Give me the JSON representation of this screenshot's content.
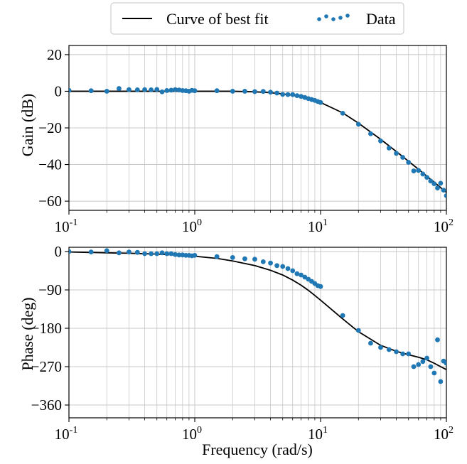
{
  "legend": {
    "curve_label": "Curve of best fit",
    "data_label": "Data"
  },
  "colors": {
    "data": "#1f77b4",
    "curve": "#000000",
    "grid": "#c8c8c8"
  },
  "xlabel": "Frequency (rad/s)",
  "chart_data": [
    {
      "type": "line",
      "ylabel": "Gain (dB)",
      "xscale": "log",
      "xlim": [
        0.1,
        100
      ],
      "ylim": [
        -65,
        25
      ],
      "grid": true,
      "legend_position": "top-center",
      "yticks": [
        20,
        0,
        -20,
        -40,
        -60
      ],
      "series": [
        {
          "name": "Curve of best fit",
          "kind": "line",
          "x": [
            0.1,
            0.2,
            0.5,
            1,
            2,
            3,
            4,
            5,
            6,
            7,
            8,
            9,
            10,
            15,
            20,
            30,
            40,
            50,
            60,
            70,
            80,
            90,
            100
          ],
          "y": [
            0,
            0,
            0,
            0,
            0,
            -0.3,
            -0.8,
            -1.4,
            -2.2,
            -3.1,
            -4.1,
            -5.1,
            -6.1,
            -11.8,
            -17.4,
            -26.2,
            -32.9,
            -38.2,
            -42.6,
            -46.4,
            -49.6,
            -52.6,
            -55.2
          ]
        },
        {
          "name": "Data",
          "kind": "scatter",
          "x": [
            0.1,
            0.15,
            0.2,
            0.25,
            0.3,
            0.35,
            0.4,
            0.45,
            0.5,
            0.55,
            0.6,
            0.65,
            0.7,
            0.75,
            0.8,
            0.85,
            0.9,
            0.95,
            1.0,
            1.5,
            2.0,
            2.5,
            3.0,
            3.5,
            4.0,
            4.5,
            5.0,
            5.5,
            6.0,
            6.5,
            7.0,
            7.5,
            8.0,
            8.5,
            9.0,
            9.5,
            10,
            15,
            20,
            25,
            30,
            35,
            40,
            45,
            50,
            55,
            60,
            65,
            70,
            75,
            80,
            85,
            90,
            95,
            100
          ],
          "y": [
            0.5,
            0.3,
            0,
            1.5,
            0.9,
            0.8,
            0.9,
            0.8,
            1.0,
            -0.3,
            0.4,
            0.6,
            0.9,
            0.7,
            0.4,
            0.3,
            0.0,
            0.5,
            0.3,
            0.3,
            0.0,
            0.0,
            -0.2,
            -0.1,
            -0.5,
            -1.0,
            -1.7,
            -1.8,
            -1.8,
            -2.4,
            -2.8,
            -3.4,
            -4.0,
            -4.5,
            -5.0,
            -5.6,
            -6.1,
            -12.0,
            -18.0,
            -23.2,
            -27.1,
            -31.0,
            -33.9,
            -36.1,
            -38.8,
            -43.5,
            -43.2,
            -45.2,
            -47.0,
            -49.0,
            -50.5,
            -52.8,
            -50.2,
            -54.0,
            -57.0
          ]
        }
      ]
    },
    {
      "type": "line",
      "ylabel": "Phase (deg)",
      "xscale": "log",
      "xlim": [
        0.1,
        100
      ],
      "ylim": [
        -390,
        10
      ],
      "grid": true,
      "yticks": [
        0,
        -90,
        -180,
        -270,
        -360
      ],
      "series": [
        {
          "name": "Curve of best fit",
          "kind": "line",
          "x": [
            0.1,
            0.2,
            0.3,
            0.5,
            0.7,
            1,
            1.5,
            2,
            3,
            4,
            5,
            6,
            7,
            8,
            9,
            10,
            15,
            20,
            30,
            40,
            50,
            60,
            70,
            80,
            90,
            100
          ],
          "y": [
            -1,
            -3,
            -4,
            -6,
            -8,
            -11,
            -16,
            -22,
            -33,
            -44,
            -55,
            -67,
            -79,
            -91,
            -103,
            -114,
            -158,
            -188,
            -220,
            -234,
            -242,
            -248,
            -254,
            -262,
            -270,
            -277
          ]
        },
        {
          "name": "Data",
          "kind": "scatter",
          "x": [
            0.1,
            0.15,
            0.2,
            0.25,
            0.3,
            0.35,
            0.4,
            0.45,
            0.5,
            0.55,
            0.6,
            0.65,
            0.7,
            0.75,
            0.8,
            0.85,
            0.9,
            0.95,
            1.0,
            1.5,
            2.0,
            2.5,
            3.0,
            3.5,
            4.0,
            4.5,
            5.0,
            5.5,
            6.0,
            6.5,
            7.0,
            7.5,
            8.0,
            8.5,
            9.0,
            9.5,
            10,
            15,
            20,
            25,
            30,
            35,
            40,
            45,
            50,
            55,
            60,
            65,
            70,
            75,
            80,
            85,
            90,
            95,
            100
          ],
          "y": [
            0,
            -1,
            2,
            -3,
            -1,
            -2,
            -5,
            -5,
            -5,
            -3,
            -5,
            -5,
            -7,
            -8,
            -8,
            -9,
            -9,
            -10,
            -9,
            -12,
            -14,
            -17,
            -18,
            -24,
            -27,
            -33,
            -35,
            -40,
            -45,
            -52,
            -55,
            -60,
            -65,
            -70,
            -75,
            -80,
            -82,
            -150,
            -185,
            -215,
            -225,
            -230,
            -235,
            -240,
            -240,
            -270,
            -265,
            -258,
            -250,
            -270,
            -285,
            -207,
            -305,
            -257,
            -262
          ]
        }
      ]
    }
  ]
}
